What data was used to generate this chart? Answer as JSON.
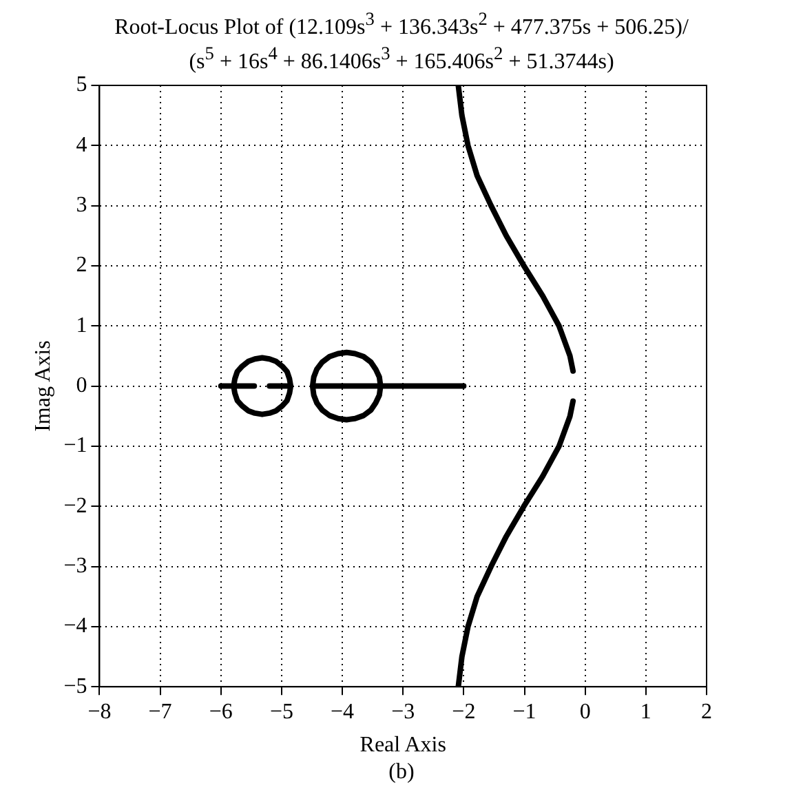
{
  "chart_data": {
    "type": "line",
    "title": "Root-Locus Plot of (12.109s$^{3}$ + 136.343s$^{2}$ + 477.375s + 506.25)/\n(s$^{5}$ + 16s$^{4}$ + 86.1406s$^{3}$ + 165.406s$^{2}$ + 51.3744s)",
    "xlabel": "Real Axis",
    "ylabel": "Imag Axis",
    "annotations": [
      "(b)"
    ],
    "xlim": [
      -8,
      2
    ],
    "ylim": [
      -5,
      5
    ],
    "xticks": [
      {
        "value": -8,
        "label": "−8"
      },
      {
        "value": -7,
        "label": "−7"
      },
      {
        "value": -6,
        "label": "−6"
      },
      {
        "value": -5,
        "label": "−5"
      },
      {
        "value": -4,
        "label": "−4"
      },
      {
        "value": -3,
        "label": "−3"
      },
      {
        "value": -2,
        "label": "−2"
      },
      {
        "value": -1,
        "label": "−1"
      },
      0,
      1,
      2
    ],
    "yticks": [
      {
        "value": -5,
        "label": "−5"
      },
      {
        "value": -4,
        "label": "−4"
      },
      {
        "value": -3,
        "label": "−3"
      },
      {
        "value": -2,
        "label": "−2"
      },
      {
        "value": -1,
        "label": "−1"
      },
      0,
      1,
      2,
      3,
      4,
      5
    ],
    "grid": true,
    "line_style": "solid",
    "marker": "none",
    "series": [
      {
        "color": "#000000",
        "x": [
          -0.2,
          -0.25,
          -0.43,
          -0.7,
          -1.01,
          -1.3,
          -1.55,
          -1.78,
          -1.93,
          -2.03,
          -2.09
        ],
        "values": [
          0.25,
          0.5,
          1,
          1.5,
          2,
          2.5,
          3,
          3.5,
          4,
          4.5,
          5
        ]
      },
      {
        "color": "#000000",
        "x": [
          -0.2,
          -0.25,
          -0.43,
          -0.7,
          -1.01,
          -1.3,
          -1.55,
          -1.78,
          -1.93,
          -2.03,
          -2.09
        ],
        "values": [
          -0.25,
          -0.5,
          -1,
          -1.5,
          -2,
          -2.5,
          -3,
          -3.5,
          -4,
          -4.5,
          -5
        ]
      },
      {
        "color": "#000000",
        "x": [
          -6,
          -5.79,
          -5.77,
          -5.73,
          -5.65,
          -5.55,
          -5.44,
          -5.32,
          -5.2,
          -5.09,
          -4.99,
          -4.91,
          -4.87,
          -4.85,
          null,
          -5.79,
          -5.77,
          -5.73,
          -5.65,
          -5.55,
          -5.44,
          -5.32,
          -5.2,
          -5.09,
          -4.99,
          -4.91,
          -4.87,
          -4.85,
          null,
          -5.79,
          -5.45,
          null,
          -5.2,
          -4.86
        ],
        "values": [
          0,
          0,
          0.12,
          0.24,
          0.33,
          0.41,
          0.45,
          0.47,
          0.45,
          0.41,
          0.33,
          0.24,
          0.12,
          0,
          null,
          0,
          -0.12,
          -0.24,
          -0.33,
          -0.41,
          -0.45,
          -0.47,
          -0.45,
          -0.41,
          -0.33,
          -0.24,
          -0.12,
          0,
          null,
          0,
          0,
          null,
          0,
          0
        ]
      },
      {
        "color": "#000000",
        "x": [
          -4.49,
          -4.47,
          -4.42,
          -4.33,
          -4.21,
          -4.07,
          -3.93,
          -3.79,
          -3.65,
          -3.53,
          -3.45,
          -3.39,
          -3.37,
          -2,
          null,
          -4.49,
          -4.47,
          -4.42,
          -4.33,
          -4.21,
          -4.07,
          -3.93,
          -3.79,
          -3.65,
          -3.53,
          -3.45,
          -3.39,
          -3.37,
          null,
          -4.49,
          -3.37
        ],
        "values": [
          0,
          0.15,
          0.28,
          0.4,
          0.49,
          0.54,
          0.56,
          0.54,
          0.49,
          0.4,
          0.28,
          0.15,
          0,
          0,
          null,
          0,
          -0.15,
          -0.28,
          -0.4,
          -0.49,
          -0.54,
          -0.56,
          -0.54,
          -0.49,
          -0.4,
          -0.28,
          -0.15,
          0,
          null,
          0,
          0
        ]
      }
    ]
  }
}
